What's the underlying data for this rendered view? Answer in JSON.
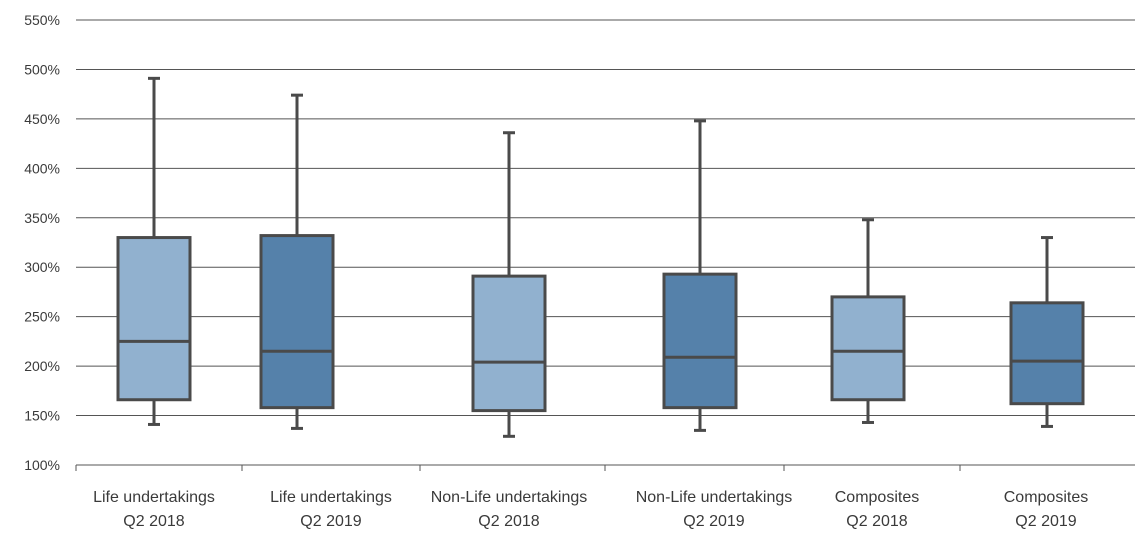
{
  "chart_data": {
    "type": "boxplot",
    "title": "",
    "xlabel": "",
    "ylabel": "",
    "ylim": [
      100,
      550
    ],
    "y_ticks": [
      "100%",
      "150%",
      "200%",
      "250%",
      "300%",
      "350%",
      "400%",
      "450%",
      "500%",
      "550%"
    ],
    "grid": true,
    "categories": [
      [
        "Life undertakings",
        "Q2 2018"
      ],
      [
        "Life undertakings",
        "Q2 2019"
      ],
      [
        "Non-Life undertakings",
        "Q2 2018"
      ],
      [
        "Non-Life undertakings",
        "Q2 2019"
      ],
      [
        "Composites",
        "Q2 2018"
      ],
      [
        "Composites",
        "Q2 2019"
      ]
    ],
    "boxes": [
      {
        "min": 141,
        "q1": 166,
        "median": 225,
        "q3": 330,
        "max": 491
      },
      {
        "min": 137,
        "q1": 158,
        "median": 215,
        "q3": 332,
        "max": 474
      },
      {
        "min": 129,
        "q1": 155,
        "median": 204,
        "q3": 291,
        "max": 436
      },
      {
        "min": 135,
        "q1": 158,
        "median": 209,
        "q3": 293,
        "max": 448
      },
      {
        "min": 143,
        "q1": 166,
        "median": 215,
        "q3": 270,
        "max": 348
      },
      {
        "min": 139,
        "q1": 162,
        "median": 205,
        "q3": 264,
        "max": 330
      }
    ],
    "colors": {
      "q2_2018": "#91b1cf",
      "q2_2019": "#5581aa",
      "stroke": "#4a4a4a",
      "grid": "#555555"
    }
  }
}
